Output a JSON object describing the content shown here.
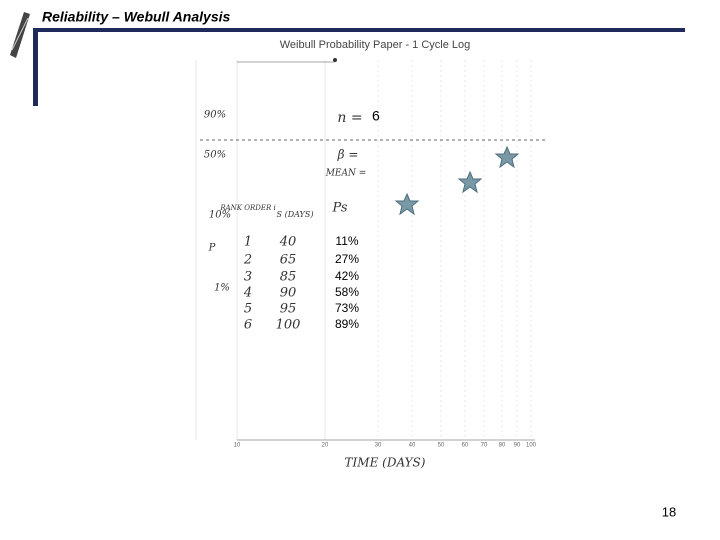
{
  "header": {
    "title": "Reliability – Webull Analysis"
  },
  "paper": {
    "title": "Weibull Probability Paper - 1 Cycle Log",
    "x_axis_label": "TIME (DAYS)",
    "x_ticks": [
      "10",
      "20",
      "30",
      "40",
      "50",
      "60",
      "70",
      "80",
      "90",
      "100"
    ],
    "left_labels": [
      "90%",
      "50%",
      "10%",
      "P",
      "1%"
    ]
  },
  "notes": {
    "n_label": "n =",
    "n_value": "6",
    "beta_label": "β =",
    "mean_label": "MEAN =",
    "ps_label": "Ps"
  },
  "table": {
    "headers": [
      "RANK ORDER i",
      "S (DAYS)"
    ],
    "rows": [
      [
        "1",
        "40"
      ],
      [
        "2",
        "65"
      ],
      [
        "3",
        "85"
      ],
      [
        "4",
        "90"
      ],
      [
        "5",
        "95"
      ],
      [
        "6",
        "100"
      ]
    ]
  },
  "percentages": [
    "11%",
    "27%",
    "42%",
    "58%",
    "73%",
    "89%"
  ],
  "footer": {
    "page_number": "18"
  }
}
